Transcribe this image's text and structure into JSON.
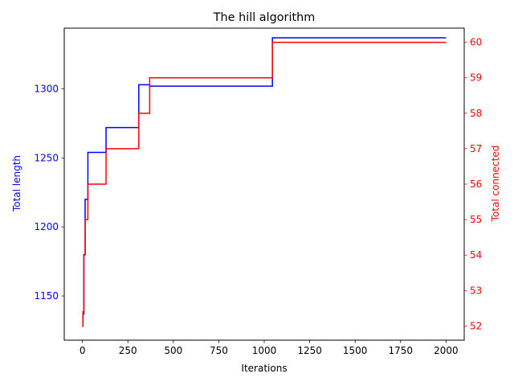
{
  "colors": {
    "left_axis": "#0000ff",
    "right_axis": "#ff0000",
    "frame": "#000000",
    "background": "#ffffff"
  },
  "chart_data": {
    "type": "line",
    "title": "The hill algorithm",
    "xlabel": "Iterations",
    "ylabel": "Total length",
    "y2label": "Total connected",
    "xlim": [
      -100,
      2100
    ],
    "ylim": [
      1118,
      1344
    ],
    "y2lim": [
      51.6,
      60.4
    ],
    "x_ticks": [
      0,
      250,
      500,
      750,
      1000,
      1250,
      1500,
      1750,
      2000
    ],
    "y_ticks": [
      1150,
      1200,
      1250,
      1300
    ],
    "y2_ticks": [
      52,
      53,
      54,
      55,
      56,
      57,
      58,
      59,
      60
    ],
    "series": [
      {
        "name": "Total length",
        "axis": "left",
        "color": "#0000ff",
        "step": "post",
        "x": [
          0,
          3,
          8,
          15,
          30,
          130,
          310,
          370,
          1045,
          2000
        ],
        "values": [
          1128,
          1137,
          1180,
          1220,
          1254,
          1272,
          1303,
          1302,
          1337,
          1337
        ]
      },
      {
        "name": "Total connected",
        "axis": "right",
        "color": "#ff0000",
        "step": "post",
        "x": [
          0,
          3,
          8,
          15,
          30,
          130,
          310,
          370,
          1045,
          2000
        ],
        "values": [
          52,
          52.4,
          54,
          55,
          56,
          57,
          58,
          59,
          60,
          60
        ]
      }
    ]
  }
}
